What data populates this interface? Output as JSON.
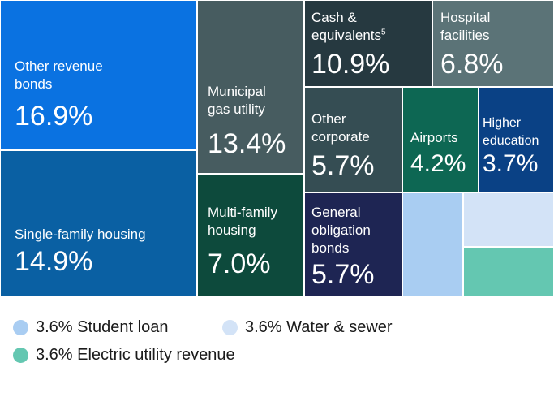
{
  "chart_data": {
    "type": "treemap",
    "tiles": [
      {
        "key": "other-revenue-bonds",
        "label_lines": [
          "Other revenue",
          "bonds"
        ],
        "value": 16.9,
        "value_label": "16.9%",
        "color": "#0a72e1"
      },
      {
        "key": "single-family-housing",
        "label_lines": [
          "Single-family housing"
        ],
        "value": 14.9,
        "value_label": "14.9%",
        "color": "#0a60a3"
      },
      {
        "key": "municipal-gas-utility",
        "label_lines": [
          "Municipal",
          "gas utility"
        ],
        "value": 13.4,
        "value_label": "13.4%",
        "color": "#475c60"
      },
      {
        "key": "multi-family-housing",
        "label_lines": [
          "Multi-family",
          "housing"
        ],
        "value": 7.0,
        "value_label": "7.0%",
        "color": "#0d4a3c"
      },
      {
        "key": "cash-equivalents",
        "label_lines": [
          "Cash &",
          "equivalents"
        ],
        "superscript": "5",
        "value": 10.9,
        "value_label": "10.9%",
        "color": "#263940"
      },
      {
        "key": "hospital-facilities",
        "label_lines": [
          "Hospital",
          "facilities"
        ],
        "value": 6.8,
        "value_label": "6.8%",
        "color": "#5b7377"
      },
      {
        "key": "other-corporate",
        "label_lines": [
          "Other",
          "corporate"
        ],
        "value": 5.7,
        "value_label": "5.7%",
        "color": "#354d53"
      },
      {
        "key": "airports",
        "label_lines": [
          "Airports"
        ],
        "value": 4.2,
        "value_label": "4.2%",
        "color": "#0d6753"
      },
      {
        "key": "higher-education",
        "label_lines": [
          "Higher",
          "education"
        ],
        "value": 3.7,
        "value_label": "3.7%",
        "color": "#0a4185"
      },
      {
        "key": "general-obligation-bonds",
        "label_lines": [
          "General",
          "obligation",
          "bonds"
        ],
        "value": 5.7,
        "value_label": "5.7%",
        "color": "#1e2553"
      },
      {
        "key": "student-loan",
        "label_lines": [],
        "value": 3.6,
        "value_label": "",
        "color": "#a9cdf2"
      },
      {
        "key": "water-sewer",
        "label_lines": [],
        "value": 3.6,
        "value_label": "",
        "color": "#d3e3f7"
      },
      {
        "key": "electric-utility-revenue",
        "label_lines": [],
        "value": 3.6,
        "value_label": "",
        "color": "#64c7b1"
      }
    ],
    "legend": [
      {
        "label": "3.6% Student loan",
        "color": "#a9cdf2"
      },
      {
        "label": "3.6% Water & sewer",
        "color": "#d3e3f7"
      },
      {
        "label": "3.6% Electric utility revenue",
        "color": "#64c7b1"
      }
    ]
  }
}
